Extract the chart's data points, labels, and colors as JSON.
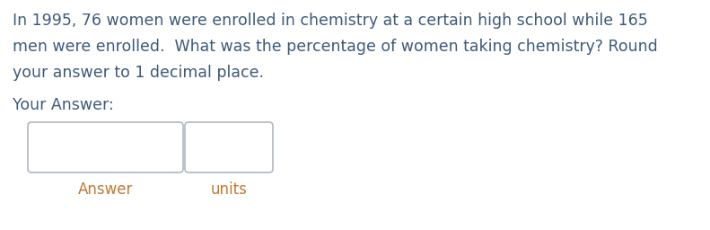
{
  "background_color": "#ffffff",
  "question_text_line1": "In 1995, 76 women were enrolled in chemistry at a certain high school while 165",
  "question_text_line2": "men were enrolled.  What was the percentage of women taking chemistry? Round",
  "question_text_line3": "your answer to 1 decimal place.",
  "your_answer_label": "Your Answer:",
  "answer_label": "Answer",
  "units_label": "units",
  "text_color": "#3d5a7a",
  "label_color": "#c07830",
  "box_edge_color": "#b0b8c0",
  "question_fontsize": 12.5,
  "label_fontsize": 12.0,
  "your_answer_fontsize": 12.5
}
